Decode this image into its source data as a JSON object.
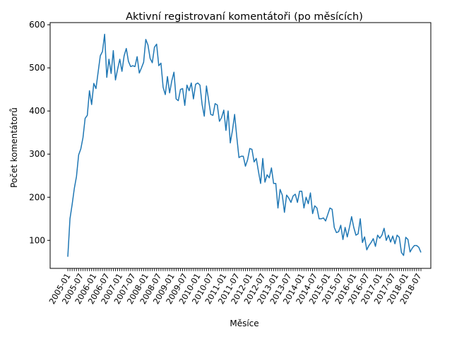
{
  "chart_data": {
    "type": "line",
    "title": "Aktivní registrovaní komentátoři (po měsících)",
    "xlabel": "Měsíce",
    "ylabel": "Počet komentátorů",
    "ylim": [
      35,
      605
    ],
    "yticks": [
      100,
      200,
      300,
      400,
      500,
      600
    ],
    "x_start": "2005-01",
    "x_end": "2018-07",
    "xtick_labels": [
      "2005-01",
      "2005-07",
      "2006-01",
      "2006-07",
      "2007-01",
      "2007-07",
      "2008-01",
      "2008-07",
      "2009-01",
      "2009-07",
      "2010-01",
      "2010-07",
      "2011-01",
      "2011-07",
      "2012-01",
      "2012-07",
      "2013-01",
      "2013-07",
      "2014-01",
      "2014-07",
      "2015-01",
      "2015-07",
      "2016-01",
      "2016-07",
      "2017-01",
      "2017-07",
      "2018-01",
      "2018-07"
    ],
    "grid": false,
    "color": "#1f77b4",
    "series": [
      {
        "values": [
          62,
          150,
          183,
          220,
          248,
          298,
          312,
          338,
          383,
          390,
          447,
          415,
          464,
          452,
          490,
          528,
          538,
          578,
          478,
          520,
          487,
          540,
          472,
          497,
          520,
          492,
          528,
          545,
          515,
          503,
          505,
          503,
          526,
          488,
          500,
          513,
          566,
          553,
          522,
          512,
          548,
          555,
          505,
          511,
          455,
          438,
          480,
          442,
          470,
          490,
          428,
          424,
          450,
          452,
          413,
          460,
          447,
          465,
          428,
          462,
          465,
          460,
          415,
          388,
          458,
          425,
          392,
          390,
          417,
          414,
          376,
          385,
          402,
          355,
          400,
          326,
          355,
          392,
          340,
          292,
          295,
          295,
          272,
          287,
          313,
          311,
          282,
          290,
          260,
          232,
          290,
          235,
          252,
          245,
          268,
          232,
          232,
          175,
          218,
          205,
          165,
          205,
          198,
          188,
          203,
          207,
          188,
          214,
          214,
          175,
          200,
          185,
          210,
          162,
          180,
          175,
          150,
          150,
          152,
          145,
          160,
          175,
          172,
          130,
          118,
          120,
          135,
          102,
          130,
          108,
          130,
          155,
          130,
          112,
          115,
          150,
          95,
          108,
          78,
          88,
          95,
          104,
          86,
          112,
          105,
          112,
          128,
          100,
          112,
          96,
          110,
          92,
          112,
          107,
          72,
          65,
          107,
          102,
          73,
          82,
          88,
          88,
          84,
          72
        ]
      }
    ]
  }
}
